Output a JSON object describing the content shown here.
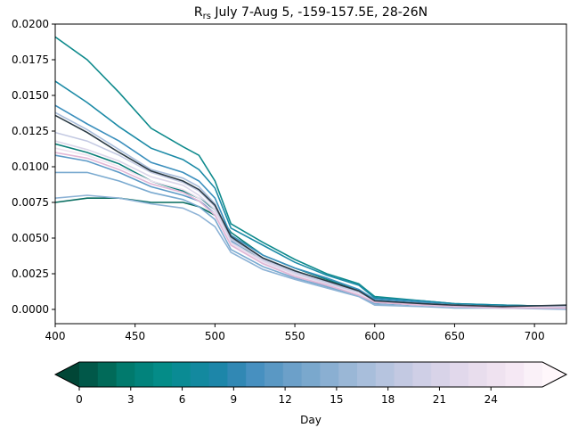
{
  "chart_data": {
    "type": "line",
    "title_main": "R",
    "title_sub": "rs",
    "title_rest": " July 7-Aug 5, -159-157.5E, 28-26N",
    "xlim": [
      400,
      720
    ],
    "ylim": [
      -0.001,
      0.02
    ],
    "x_ticks": [
      "400",
      "450",
      "500",
      "550",
      "600",
      "650",
      "700"
    ],
    "y_ticks": [
      "0.0000",
      "0.0025",
      "0.0050",
      "0.0075",
      "0.0100",
      "0.0125",
      "0.0150",
      "0.0175",
      "0.0200"
    ],
    "colorbar": {
      "label": "Day",
      "ticks": [
        "0",
        "3",
        "6",
        "9",
        "12",
        "15",
        "18",
        "21",
        "24"
      ],
      "range": [
        0,
        27
      ],
      "colors": [
        "#014636",
        "#015849",
        "#016a59",
        "#017a6d",
        "#02837c",
        "#048c88",
        "#0a8b94",
        "#13899f",
        "#1d86a9",
        "#3188b4",
        "#4790c0",
        "#5a98c4",
        "#6ca0c9",
        "#7aa8cd",
        "#8aafd2",
        "#9ab7d6",
        "#a8bedb",
        "#b6c4df",
        "#c3c9e2",
        "#cfcfe6",
        "#d8d3e8",
        "#e1d8eb",
        "#e8dded",
        "#efe2f0",
        "#f5e8f4",
        "#faf1f8",
        "#fff7fb"
      ]
    },
    "series": [
      {
        "color": "#046b5e",
        "values": [
          0.0075,
          0.0078,
          0.0078,
          0.0075,
          0.0075,
          0.0072,
          0.0066,
          0.005,
          0.0033,
          0.0024,
          0.0016,
          0.001,
          0.0005,
          0.0003,
          0.0002,
          0.0003,
          0.0002
        ]
      },
      {
        "color": "#0a7f78",
        "values": [
          0.0116,
          0.011,
          0.0102,
          0.009,
          0.0083,
          0.0078,
          0.007,
          0.0054,
          0.0038,
          0.0029,
          0.0021,
          0.0013,
          0.0006,
          0.0004,
          0.0003,
          0.0002,
          0.0002
        ]
      },
      {
        "color": "#0e8a8c",
        "values": [
          0.0191,
          0.0175,
          0.0152,
          0.0127,
          0.0114,
          0.0108,
          0.009,
          0.006,
          0.0047,
          0.0035,
          0.0025,
          0.0018,
          0.0009,
          0.0006,
          0.0004,
          0.0003,
          0.0002
        ]
      },
      {
        "color": "#1b8aa6",
        "values": [
          0.016,
          0.0145,
          0.0128,
          0.0113,
          0.0105,
          0.0098,
          0.0085,
          0.0057,
          0.0045,
          0.0033,
          0.0024,
          0.0017,
          0.0008,
          0.0006,
          0.0004,
          0.0003,
          0.0002
        ]
      },
      {
        "color": "#3b8fbd",
        "values": [
          0.0143,
          0.013,
          0.0118,
          0.0103,
          0.0096,
          0.009,
          0.0078,
          0.0052,
          0.0038,
          0.0029,
          0.0022,
          0.0014,
          0.0007,
          0.0005,
          0.0003,
          0.0002,
          0.0002
        ]
      },
      {
        "color": "#5c9ac7",
        "values": [
          0.0108,
          0.0104,
          0.0096,
          0.0086,
          0.008,
          0.0076,
          0.0068,
          0.0048,
          0.0033,
          0.0025,
          0.0018,
          0.0012,
          0.0006,
          0.0004,
          0.0003,
          0.0002,
          0.0001
        ]
      },
      {
        "color": "#7aaad0",
        "values": [
          0.0096,
          0.0096,
          0.009,
          0.0082,
          0.0077,
          0.0072,
          0.0063,
          0.0042,
          0.003,
          0.0022,
          0.0016,
          0.001,
          0.0004,
          0.0003,
          0.0002,
          0.0001,
          0.0001
        ]
      },
      {
        "color": "#8eb3d6",
        "values": [
          0.0078,
          0.008,
          0.0078,
          0.0074,
          0.0071,
          0.0066,
          0.0058,
          0.004,
          0.0028,
          0.0021,
          0.0015,
          0.0009,
          0.0003,
          0.0002,
          0.0001,
          0.0001,
          0.0
        ]
      },
      {
        "color": "#a9bddb",
        "values": [
          0.0138,
          0.0126,
          0.0112,
          0.0098,
          0.0092,
          0.0086,
          0.0074,
          0.005,
          0.0036,
          0.0027,
          0.0019,
          0.0012,
          0.0006,
          0.0004,
          0.0003,
          0.0002,
          0.0001
        ]
      },
      {
        "color": "#c3c9e2",
        "values": [
          0.0124,
          0.0118,
          0.0108,
          0.0096,
          0.0089,
          0.0083,
          0.0072,
          0.0049,
          0.0035,
          0.0026,
          0.0019,
          0.0012,
          0.0006,
          0.0004,
          0.0003,
          0.0002,
          0.0002
        ]
      },
      {
        "color": "#dcd6ea",
        "values": [
          0.0118,
          0.0112,
          0.0104,
          0.0093,
          0.0087,
          0.008,
          0.007,
          0.0047,
          0.0034,
          0.0025,
          0.0018,
          0.0011,
          0.0005,
          0.0003,
          0.0002,
          0.0002,
          0.0001
        ]
      },
      {
        "color": "#efe2f0",
        "values": [
          0.0113,
          0.0108,
          0.01,
          0.009,
          0.0084,
          0.0078,
          0.0068,
          0.0046,
          0.0033,
          0.0024,
          0.0017,
          0.0011,
          0.0005,
          0.0003,
          0.0002,
          0.0002,
          0.0001
        ]
      },
      {
        "color": "#e2b7d6",
        "values": [
          0.011,
          0.0106,
          0.0098,
          0.0088,
          0.0082,
          0.0076,
          0.0066,
          0.0045,
          0.0032,
          0.0023,
          0.0017,
          0.001,
          0.0005,
          0.0003,
          0.0002,
          0.0001,
          0.0001
        ]
      },
      {
        "color": "#2a3a44",
        "values": [
          0.0136,
          0.0124,
          0.011,
          0.0097,
          0.009,
          0.0084,
          0.0073,
          0.0051,
          0.0036,
          0.0027,
          0.002,
          0.0013,
          0.0006,
          0.0004,
          0.0003,
          0.0002,
          0.0003
        ]
      }
    ],
    "x": [
      400,
      420,
      440,
      460,
      480,
      490,
      500,
      510,
      530,
      550,
      570,
      590,
      600,
      630,
      650,
      680,
      720
    ]
  }
}
